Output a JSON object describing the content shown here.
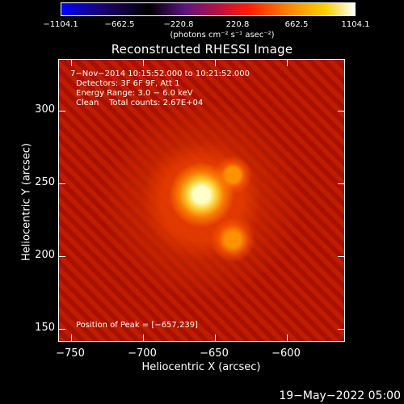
{
  "colorbar": {
    "ticks": [
      "−1104.1",
      "−662.5",
      "−220.8",
      "220.8",
      "662.5",
      "1104.1"
    ],
    "unit": "(photons cm⁻² s⁻¹ asec⁻²)",
    "colors": [
      "#0000ff",
      "#000000",
      "#7a1a8a",
      "#ff0000",
      "#ff8800",
      "#ffff00",
      "#ffffff"
    ]
  },
  "title": "Reconstructed RHESSI Image",
  "annotation": {
    "line1": "7−Nov−2014 10:15:52.000 to 10:21:52.000",
    "line2": "Detectors: 3F 6F 9F, Att 1",
    "line3": "Energy Range: 3.0 − 6.0 keV",
    "line4": "Clean    Total counts: 2.67E+04",
    "peak": "Position of Peak = [−657,239]"
  },
  "axes": {
    "xlabel": "Heliocentric X (arcsec)",
    "ylabel": "Heliocentric Y (arcsec)",
    "xticks": [
      "−750",
      "−700",
      "−650",
      "−600"
    ],
    "yticks": [
      "300",
      "250",
      "200",
      "150"
    ]
  },
  "footer": {
    "date": "19−May−2022 05:00"
  }
}
